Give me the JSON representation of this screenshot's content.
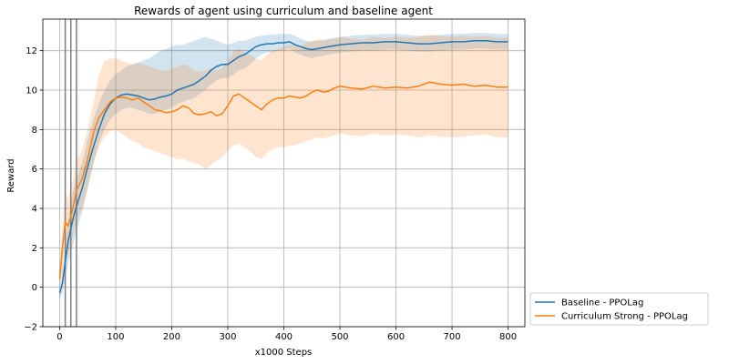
{
  "chart_data": {
    "type": "line",
    "title": "Rewards of agent using curriculum and baseline agent",
    "xlabel": "x1000 Steps",
    "ylabel": "Reward",
    "xlim": [
      -30,
      830
    ],
    "ylim": [
      -2,
      13.6
    ],
    "xticks": [
      0,
      100,
      200,
      300,
      400,
      500,
      600,
      700,
      800
    ],
    "yticks": [
      -2,
      0,
      2,
      4,
      6,
      8,
      10,
      12
    ],
    "grid": true,
    "legend_position": "outside-lower-right",
    "vertical_markers": [
      10,
      20,
      30
    ],
    "colors": {
      "baseline": "#1f77b4",
      "curriculum": "#ff7f0e",
      "markers": "#7f7f7f",
      "grid": "#b0b0b0"
    },
    "series": [
      {
        "name": "Baseline - PPOLag",
        "key": "baseline",
        "x": [
          0,
          5,
          10,
          15,
          20,
          25,
          30,
          40,
          50,
          60,
          70,
          80,
          90,
          100,
          110,
          120,
          130,
          140,
          150,
          160,
          170,
          180,
          190,
          200,
          210,
          220,
          230,
          240,
          250,
          260,
          270,
          280,
          290,
          300,
          310,
          320,
          330,
          340,
          350,
          360,
          370,
          380,
          390,
          400,
          410,
          420,
          430,
          440,
          450,
          460,
          470,
          480,
          490,
          500,
          520,
          540,
          560,
          580,
          600,
          620,
          640,
          660,
          680,
          700,
          720,
          740,
          760,
          780,
          800
        ],
        "mean": [
          -0.3,
          0.2,
          1.3,
          2.3,
          3.0,
          3.6,
          4.1,
          5.0,
          6.1,
          7.1,
          8.0,
          8.8,
          9.3,
          9.6,
          9.75,
          9.8,
          9.75,
          9.7,
          9.6,
          9.5,
          9.55,
          9.65,
          9.7,
          9.8,
          10.0,
          10.1,
          10.2,
          10.3,
          10.5,
          10.7,
          11.0,
          11.2,
          11.3,
          11.3,
          11.5,
          11.7,
          11.8,
          12.0,
          12.2,
          12.3,
          12.35,
          12.35,
          12.4,
          12.4,
          12.45,
          12.3,
          12.2,
          12.1,
          12.05,
          12.1,
          12.15,
          12.2,
          12.25,
          12.3,
          12.35,
          12.4,
          12.4,
          12.45,
          12.45,
          12.4,
          12.35,
          12.35,
          12.4,
          12.45,
          12.45,
          12.5,
          12.5,
          12.45,
          12.45
        ],
        "lower": [
          -0.6,
          -0.3,
          0.5,
          1.2,
          1.7,
          2.3,
          2.8,
          3.8,
          5.0,
          6.2,
          7.3,
          8.0,
          8.5,
          8.8,
          9.0,
          9.1,
          9.1,
          9.0,
          8.9,
          8.8,
          8.8,
          8.9,
          9.0,
          9.1,
          9.3,
          9.4,
          9.5,
          9.6,
          9.8,
          10.0,
          10.3,
          10.5,
          10.6,
          10.6,
          10.8,
          11.0,
          11.1,
          11.3,
          11.6,
          11.8,
          11.9,
          11.9,
          12.0,
          12.0,
          12.1,
          11.9,
          11.8,
          11.7,
          11.6,
          11.7,
          11.75,
          11.8,
          11.85,
          11.9,
          11.95,
          12.0,
          12.0,
          12.05,
          12.05,
          12.0,
          11.95,
          11.95,
          12.0,
          12.05,
          12.05,
          12.1,
          12.1,
          12.05,
          12.05
        ],
        "upper": [
          0.1,
          0.8,
          2.0,
          3.3,
          4.3,
          5.0,
          5.5,
          6.3,
          7.5,
          8.5,
          9.3,
          10.0,
          10.5,
          10.8,
          11.0,
          11.2,
          11.3,
          11.4,
          11.5,
          11.6,
          11.8,
          12.0,
          12.1,
          12.2,
          12.3,
          12.3,
          12.4,
          12.5,
          12.6,
          12.7,
          12.6,
          12.5,
          12.4,
          12.3,
          12.4,
          12.5,
          12.5,
          12.6,
          12.7,
          12.75,
          12.8,
          12.8,
          12.85,
          12.85,
          12.85,
          12.75,
          12.6,
          12.5,
          12.45,
          12.5,
          12.55,
          12.6,
          12.65,
          12.7,
          12.75,
          12.8,
          12.8,
          12.85,
          12.85,
          12.8,
          12.75,
          12.75,
          12.8,
          12.85,
          12.85,
          12.9,
          12.9,
          12.85,
          12.85
        ]
      },
      {
        "name": "Curriculum Strong - PPOLag",
        "key": "curriculum",
        "x": [
          0,
          5,
          10,
          15,
          20,
          25,
          30,
          40,
          50,
          60,
          70,
          80,
          90,
          100,
          110,
          120,
          130,
          140,
          150,
          160,
          170,
          180,
          190,
          200,
          210,
          220,
          230,
          240,
          250,
          260,
          270,
          280,
          290,
          300,
          310,
          320,
          330,
          340,
          350,
          360,
          370,
          380,
          390,
          400,
          410,
          420,
          430,
          440,
          450,
          460,
          470,
          480,
          490,
          500,
          520,
          540,
          560,
          580,
          600,
          620,
          640,
          660,
          680,
          700,
          720,
          740,
          760,
          780,
          800
        ],
        "mean": [
          0.4,
          2.0,
          3.3,
          3.1,
          3.6,
          4.2,
          4.9,
          5.5,
          6.5,
          7.8,
          8.6,
          9.0,
          9.4,
          9.6,
          9.65,
          9.6,
          9.5,
          9.6,
          9.4,
          9.2,
          9.0,
          8.95,
          8.85,
          8.9,
          9.0,
          9.2,
          9.1,
          8.8,
          8.75,
          8.8,
          8.9,
          8.7,
          8.8,
          9.2,
          9.7,
          9.8,
          9.6,
          9.4,
          9.2,
          9.0,
          9.3,
          9.5,
          9.6,
          9.6,
          9.7,
          9.65,
          9.6,
          9.7,
          9.9,
          10.0,
          9.9,
          9.95,
          10.1,
          10.2,
          10.1,
          10.05,
          10.2,
          10.1,
          10.15,
          10.1,
          10.2,
          10.4,
          10.3,
          10.25,
          10.3,
          10.2,
          10.25,
          10.15,
          10.15
        ],
        "lower": [
          0.0,
          0.8,
          1.8,
          1.7,
          2.2,
          2.8,
          3.4,
          4.0,
          5.0,
          6.3,
          7.1,
          7.6,
          7.9,
          8.0,
          7.8,
          7.6,
          7.4,
          7.3,
          7.1,
          7.0,
          6.9,
          6.8,
          6.7,
          6.6,
          6.5,
          6.5,
          6.4,
          6.3,
          6.2,
          6.0,
          6.2,
          6.4,
          6.6,
          6.9,
          7.2,
          7.3,
          7.1,
          6.9,
          6.6,
          6.5,
          6.8,
          7.0,
          7.1,
          7.1,
          7.2,
          7.2,
          7.3,
          7.4,
          7.5,
          7.6,
          7.55,
          7.6,
          7.7,
          7.8,
          7.7,
          7.65,
          7.8,
          7.7,
          7.75,
          7.7,
          7.6,
          7.7,
          7.65,
          7.6,
          7.65,
          7.7,
          7.75,
          7.6,
          7.6
        ],
        "upper": [
          0.8,
          3.2,
          4.8,
          4.5,
          5.0,
          5.6,
          6.4,
          7.0,
          8.0,
          9.3,
          10.8,
          11.5,
          11.6,
          11.6,
          11.5,
          11.4,
          11.3,
          11.4,
          11.3,
          11.2,
          11.1,
          11.0,
          11.0,
          11.1,
          11.2,
          11.3,
          11.2,
          11.0,
          10.9,
          11.0,
          11.1,
          11.0,
          11.1,
          11.5,
          12.0,
          12.1,
          11.9,
          11.8,
          11.6,
          11.5,
          11.8,
          12.0,
          12.1,
          12.2,
          12.3,
          12.3,
          12.2,
          12.4,
          12.5,
          12.6,
          12.5,
          12.55,
          12.6,
          12.7,
          12.6,
          12.55,
          12.7,
          12.65,
          12.7,
          12.65,
          12.7,
          12.8,
          12.75,
          12.7,
          12.75,
          12.7,
          12.75,
          12.65,
          12.65
        ]
      }
    ]
  }
}
